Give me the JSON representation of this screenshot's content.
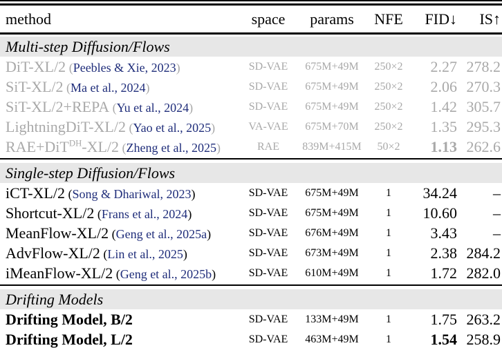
{
  "header": {
    "columns": [
      "method",
      "space",
      "params",
      "NFE",
      "FID↓",
      "IS↑"
    ]
  },
  "punct": {
    "cite_open": "(",
    "cite_close": ")"
  },
  "colors": {
    "citation_blue": "#1f2d7a",
    "muted_gray": "#a9a9a9",
    "section_band_gray": "#e7e7e7",
    "text_black": "#000000",
    "rule_black": "#000000",
    "background": "#ffffff"
  },
  "sections": [
    {
      "title": "Multi-step Diffusion/Flows",
      "muted": true,
      "rows": [
        {
          "name_parts": [
            {
              "text": "DiT-XL/2"
            }
          ],
          "citation": "Peebles & Xie, 2023",
          "space": "SD-VAE",
          "params": "675M+49M",
          "nfe": "250×2",
          "fid": "2.27",
          "fid_bold": false,
          "is": "278.2"
        },
        {
          "name_parts": [
            {
              "text": "SiT-XL/2"
            }
          ],
          "citation": "Ma et al., 2024",
          "space": "SD-VAE",
          "params": "675M+49M",
          "nfe": "250×2",
          "fid": "2.06",
          "fid_bold": false,
          "is": "270.3"
        },
        {
          "name_parts": [
            {
              "text": "SiT-XL/2+REPA"
            }
          ],
          "citation": "Yu et al., 2024",
          "space": "SD-VAE",
          "params": "675M+49M",
          "nfe": "250×2",
          "fid": "1.42",
          "fid_bold": false,
          "is": "305.7"
        },
        {
          "name_parts": [
            {
              "text": "LightningDiT-XL/2"
            }
          ],
          "citation": "Yao et al., 2025",
          "space": "VA-VAE",
          "params": "675M+70M",
          "nfe": "250×2",
          "fid": "1.35",
          "fid_bold": false,
          "is": "295.3"
        },
        {
          "name_parts": [
            {
              "text": "RAE+DiT"
            },
            {
              "text": "DH",
              "sup": true
            },
            {
              "text": "-XL/2"
            }
          ],
          "citation": "Zheng et al., 2025",
          "space": "RAE",
          "params": "839M+415M",
          "nfe": "50×2",
          "fid": "1.13",
          "fid_bold": true,
          "is": "262.6"
        }
      ]
    },
    {
      "title": "Single-step Diffusion/Flows",
      "muted": false,
      "rows": [
        {
          "name_parts": [
            {
              "text": "iCT-XL/2"
            }
          ],
          "citation": "Song & Dhariwal, 2023",
          "space": "SD-VAE",
          "params": "675M+49M",
          "nfe": "1",
          "fid": "34.24",
          "fid_bold": false,
          "is": "–"
        },
        {
          "name_parts": [
            {
              "text": "Shortcut-XL/2"
            }
          ],
          "citation": "Frans et al., 2024",
          "space": "SD-VAE",
          "params": "675M+49M",
          "nfe": "1",
          "fid": "10.60",
          "fid_bold": false,
          "is": "–"
        },
        {
          "name_parts": [
            {
              "text": "MeanFlow-XL/2"
            }
          ],
          "citation": "Geng et al., 2025a",
          "space": "SD-VAE",
          "params": "676M+49M",
          "nfe": "1",
          "fid": "3.43",
          "fid_bold": false,
          "is": "–"
        },
        {
          "name_parts": [
            {
              "text": "AdvFlow-XL/2"
            }
          ],
          "citation": "Lin et al., 2025",
          "space": "SD-VAE",
          "params": "673M+49M",
          "nfe": "1",
          "fid": "2.38",
          "fid_bold": false,
          "is": "284.2"
        },
        {
          "name_parts": [
            {
              "text": "iMeanFlow-XL/2"
            }
          ],
          "citation": "Geng et al., 2025b",
          "space": "SD-VAE",
          "params": "610M+49M",
          "nfe": "1",
          "fid": "1.72",
          "fid_bold": false,
          "is": "282.0"
        }
      ]
    },
    {
      "title": "Drifting Models",
      "muted": false,
      "rows": [
        {
          "name_parts": [
            {
              "text": "Drifting Model, B/2"
            }
          ],
          "bold_name": true,
          "citation": null,
          "space": "SD-VAE",
          "params": "133M+49M",
          "nfe": "1",
          "fid": "1.75",
          "fid_bold": false,
          "is": "263.2"
        },
        {
          "name_parts": [
            {
              "text": "Drifting Model, L/2"
            }
          ],
          "bold_name": true,
          "citation": null,
          "space": "SD-VAE",
          "params": "463M+49M",
          "nfe": "1",
          "fid": "1.54",
          "fid_bold": true,
          "is": "258.9"
        }
      ]
    }
  ]
}
